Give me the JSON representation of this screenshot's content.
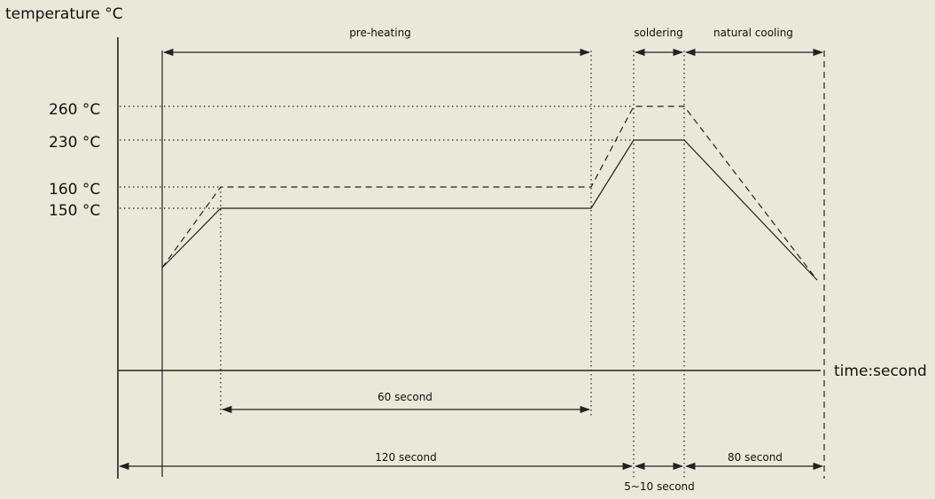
{
  "chart_data": {
    "type": "line",
    "title": "",
    "ylabel": "temperature °C",
    "xlabel": "time:second",
    "y_ticks": [
      {
        "label": "260 °C",
        "value": 260
      },
      {
        "label": "230 °C",
        "value": 230
      },
      {
        "label": "160 °C",
        "value": 160
      },
      {
        "label": "150 °C",
        "value": 150
      }
    ],
    "series": [
      {
        "style": "solid",
        "points": [
          {
            "x": 0,
            "y": 120
          },
          {
            "x": 30,
            "y": 150
          },
          {
            "x": 90,
            "y": 150
          },
          {
            "x": 120,
            "y": 230
          },
          {
            "x": 130,
            "y": 230
          },
          {
            "x": 210,
            "y": 112
          }
        ]
      },
      {
        "style": "dashed",
        "points": [
          {
            "x": 0,
            "y": 120
          },
          {
            "x": 30,
            "y": 160
          },
          {
            "x": 90,
            "y": 160
          },
          {
            "x": 120,
            "y": 260
          },
          {
            "x": 130,
            "y": 260
          },
          {
            "x": 210,
            "y": 112
          }
        ]
      }
    ],
    "phases": [
      {
        "label": "pre-heating"
      },
      {
        "label": "soldering"
      },
      {
        "label": "natural cooling"
      }
    ],
    "durations": [
      {
        "label": "60 second"
      },
      {
        "label": "120 second"
      },
      {
        "label": "5~10 second"
      },
      {
        "label": "80 second"
      }
    ]
  }
}
